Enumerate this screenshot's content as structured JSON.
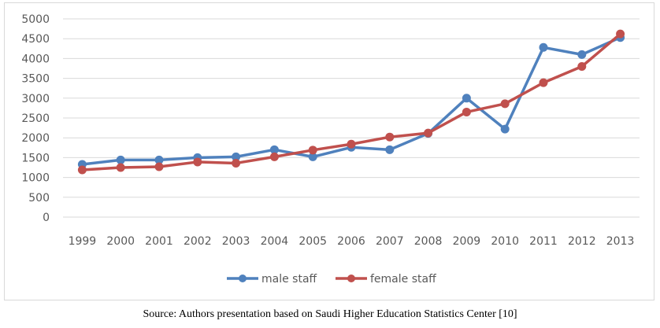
{
  "chart_data": {
    "type": "line",
    "title": "",
    "xlabel": "",
    "ylabel": "",
    "categories": [
      "1999",
      "2000",
      "2001",
      "2002",
      "2003",
      "2004",
      "2005",
      "2006",
      "2007",
      "2008",
      "2009",
      "2010",
      "2011",
      "2012",
      "2013"
    ],
    "series": [
      {
        "name": "male staff",
        "color": "#4f81bd",
        "values": [
          1330,
          1440,
          1440,
          1500,
          1520,
          1700,
          1520,
          1760,
          1700,
          2110,
          3000,
          2220,
          4280,
          4100,
          4530
        ]
      },
      {
        "name": "female staff",
        "color": "#c0504d",
        "values": [
          1190,
          1250,
          1270,
          1390,
          1360,
          1520,
          1690,
          1840,
          2020,
          2120,
          2650,
          2860,
          3390,
          3800,
          4620
        ]
      }
    ],
    "ylim": [
      0,
      5000
    ],
    "yticks": [
      0,
      500,
      1000,
      1500,
      2000,
      2500,
      3000,
      3500,
      4000,
      4500,
      5000
    ],
    "grid": true,
    "legend": "bottom",
    "gridline_color": "#d9d9d9"
  },
  "caption": "Source: Authors presentation based on Saudi Higher Education Statistics Center [10]"
}
